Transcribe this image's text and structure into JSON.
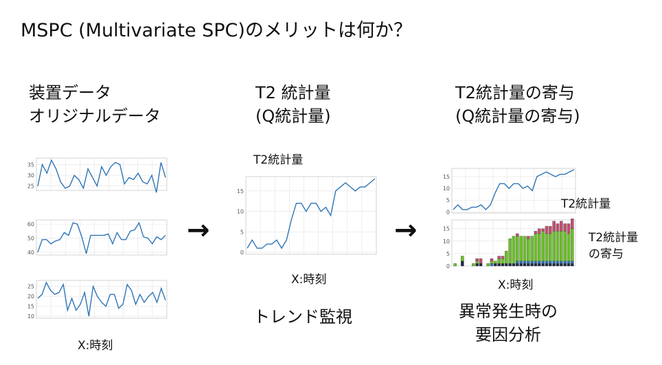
{
  "title": "MSPC (Multivariate SPC)のメリットは何か？",
  "panel1": {
    "heading_line1": "装置データ",
    "heading_line2": "オリジナルデータ",
    "xlabel": "X:時刻"
  },
  "panel2": {
    "heading_line1": "T2 統計量",
    "heading_line2": "(Q統計量)",
    "chart_label": "T2統計量",
    "xlabel": "X:時刻",
    "caption": "トレンド監視"
  },
  "panel3": {
    "heading_line1": "T2統計量の寄与",
    "heading_line2": "(Q統計量の寄与)",
    "chart_label_top": "T2統計量",
    "chart_label_bottom_line1": "T2統計量",
    "chart_label_bottom_line2": "の寄与",
    "xlabel": "X:時刻",
    "caption_line1": "異常発生時の",
    "caption_line2": "要因分析"
  },
  "arrows": [
    "→",
    "→"
  ],
  "colors": {
    "line": "#2e75b6",
    "grid": "#e2e2e2",
    "bar_red": "#c0506f",
    "bar_green": "#6cbf2a",
    "bar_blue": "#2e75b6",
    "bar_dark": "#1f2a44"
  },
  "chart_data": [
    {
      "type": "line",
      "ylim": [
        23,
        38
      ],
      "yticks": [
        25,
        30,
        35
      ],
      "values": [
        25,
        35,
        31,
        37,
        33,
        27,
        24,
        25,
        30,
        28,
        24,
        33,
        29,
        25,
        34,
        30,
        34,
        36,
        35,
        26,
        29,
        28,
        31,
        27,
        26,
        30,
        22,
        36,
        29
      ]
    },
    {
      "type": "line",
      "ylim": [
        38,
        63
      ],
      "yticks": [
        40,
        50,
        60
      ],
      "values": [
        40,
        49,
        49,
        46,
        48,
        49,
        54,
        52,
        61,
        60,
        51,
        39,
        52,
        52,
        52,
        52,
        53,
        46,
        54,
        49,
        49,
        55,
        56,
        61,
        51,
        50,
        46,
        51,
        49,
        52
      ]
    },
    {
      "type": "line",
      "ylim": [
        9,
        28
      ],
      "yticks": [
        10,
        15,
        20,
        25
      ],
      "values": [
        19,
        21,
        27,
        23,
        21,
        22,
        26,
        13,
        19,
        13,
        16,
        22,
        10,
        25,
        20,
        17,
        15,
        21,
        21,
        14,
        16,
        26,
        23,
        16,
        21,
        17,
        20,
        22,
        17,
        24,
        18
      ]
    },
    {
      "type": "line",
      "ylim": [
        -0.5,
        18.5
      ],
      "yticks": [
        0,
        5,
        10,
        15
      ],
      "values": [
        1,
        3,
        1,
        1,
        2,
        2,
        3,
        1,
        3,
        8,
        12,
        12,
        10,
        12,
        12,
        10,
        11,
        9,
        15,
        16,
        17,
        16,
        15,
        16,
        16,
        17,
        18
      ]
    },
    {
      "type": "line",
      "ylim": [
        -0.5,
        18.5
      ],
      "yticks": [
        0,
        5,
        10,
        15
      ],
      "values": [
        1,
        3,
        1,
        1,
        2,
        2,
        3,
        1,
        3,
        8,
        12,
        12,
        10,
        12,
        12,
        10,
        11,
        9,
        15,
        16,
        17,
        16,
        15,
        16,
        16,
        17,
        18
      ]
    },
    {
      "type": "bar",
      "stacked": true,
      "ylim": [
        0,
        18.5
      ],
      "yticks": [
        0,
        5,
        10,
        15
      ],
      "series": [
        {
          "color": "#1f2a44",
          "values": [
            0,
            0,
            2,
            0,
            0,
            0,
            1,
            1,
            0,
            0,
            0,
            1,
            1,
            1,
            1,
            1,
            1,
            1,
            1,
            1,
            1,
            1,
            1,
            1,
            1,
            1,
            1,
            1,
            1,
            1,
            1,
            1,
            1
          ]
        },
        {
          "color": "#2e75b6",
          "values": [
            0,
            0,
            0,
            0,
            0,
            0,
            0,
            0,
            0,
            0,
            1,
            0,
            0,
            0,
            0,
            0,
            0,
            1,
            1,
            1,
            1,
            1,
            1,
            1,
            1,
            1,
            1,
            1,
            1,
            1,
            1,
            1,
            1
          ]
        },
        {
          "color": "#6cbf2a",
          "values": [
            1,
            0,
            2,
            0,
            0,
            1,
            1,
            0,
            0,
            1,
            1,
            1,
            2,
            2,
            5,
            10,
            11,
            10,
            10,
            10,
            9,
            10,
            11,
            11,
            12,
            11,
            11,
            12,
            12,
            12,
            12,
            11,
            13
          ]
        },
        {
          "color": "#c0506f",
          "values": [
            0,
            0,
            0,
            0,
            0,
            0,
            1,
            2,
            0,
            0,
            1,
            0,
            1,
            1,
            0,
            0,
            0,
            1,
            0,
            0,
            1,
            0,
            1,
            2,
            1,
            3,
            3,
            4,
            3,
            4,
            3,
            4,
            4
          ]
        }
      ]
    }
  ]
}
